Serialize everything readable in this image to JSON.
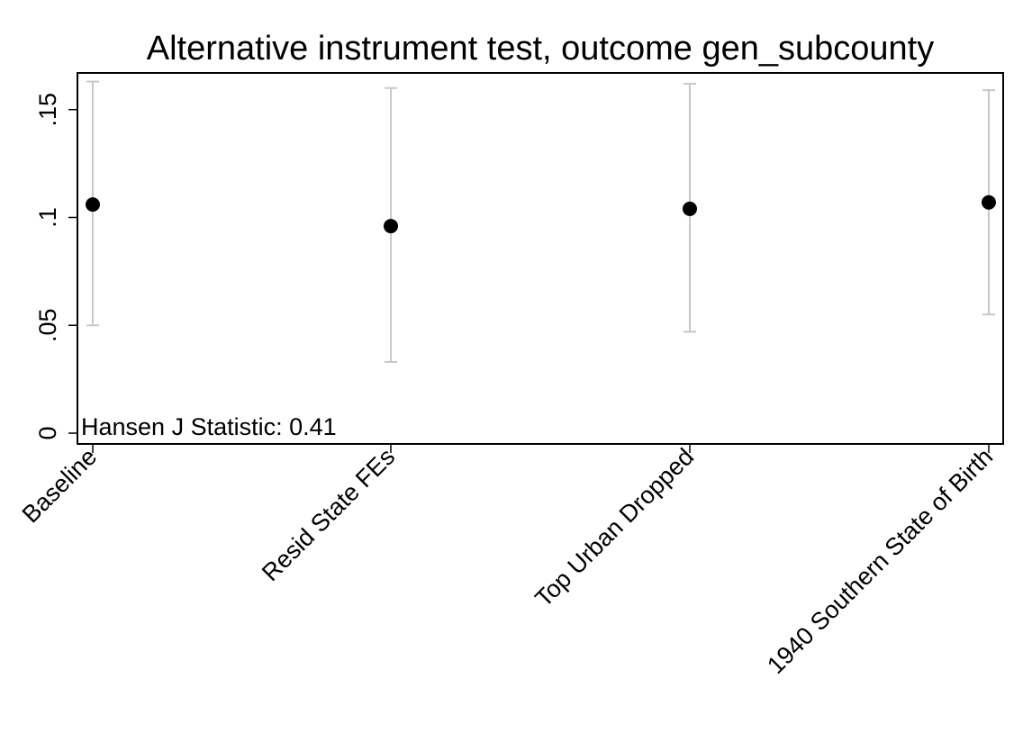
{
  "chart_data": {
    "type": "scatter",
    "title": "Alternative instrument test, outcome gen_subcounty",
    "xlabel": "",
    "ylabel": "",
    "categories": [
      "Baseline",
      "Resid State FEs",
      "Top Urban Dropped",
      "1940 Southern State of Birth"
    ],
    "estimates": [
      0.106,
      0.096,
      0.104,
      0.107
    ],
    "ci_lower": [
      0.05,
      0.033,
      0.047,
      0.055
    ],
    "ci_upper": [
      0.163,
      0.16,
      0.162,
      0.159
    ],
    "ylim": [
      -0.005,
      0.167
    ],
    "yticks": [
      0,
      0.05,
      0.1,
      0.15
    ],
    "ytick_labels": [
      "0",
      ".05",
      ".1",
      ".15"
    ],
    "annotation": "Hansen J Statistic: 0.41",
    "grid": false,
    "point_color": "#000000",
    "ci_color": "#c8c8c8"
  }
}
